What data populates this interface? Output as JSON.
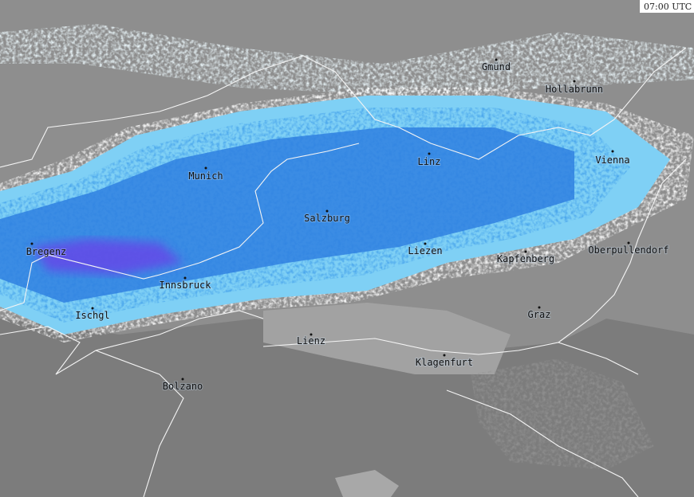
{
  "timestamp": "07:00 UTC",
  "cities": [
    {
      "name": "Gmünd"
    },
    {
      "name": "Hollabrunn"
    },
    {
      "name": "Linz"
    },
    {
      "name": "Vienna"
    },
    {
      "name": "Munich"
    },
    {
      "name": "Salzburg"
    },
    {
      "name": "Bregenz"
    },
    {
      "name": "Liezen"
    },
    {
      "name": "Kapfenberg"
    },
    {
      "name": "Oberpullendorf"
    },
    {
      "name": "Innsbruck"
    },
    {
      "name": "Ischgl"
    },
    {
      "name": "Graz"
    },
    {
      "name": "Lienz"
    },
    {
      "name": "Klagenfurt"
    },
    {
      "name": "Bolzano"
    }
  ]
}
